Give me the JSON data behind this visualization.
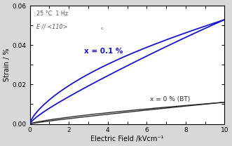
{
  "xlabel": "Electric Field /kVcm⁻¹",
  "ylabel": "Strain / %",
  "annotation_line1": "25 °C  1 Hz",
  "annotation_line2": "E // <110>",
  "annotation_sub": "c",
  "label_blue": "x = 0.1 %",
  "label_black": "x = 0 % (BT)",
  "xlim": [
    0,
    10
  ],
  "ylim": [
    0,
    0.06
  ],
  "xticks": [
    0,
    2,
    4,
    6,
    8,
    10
  ],
  "yticks": [
    0.0,
    0.02,
    0.04,
    0.06
  ],
  "blue_color": "#1515CC",
  "black_color": "#2a2a2a",
  "annot_color": "#555555",
  "plot_bg": "#ffffff",
  "fig_bg": "#d8d8d8",
  "blue_max": 0.053,
  "blue_exp": 0.72,
  "blue_spread": 0.006,
  "black_max": 0.011,
  "black_exp": 0.8,
  "black_spread": 0.0008,
  "blue_lw": 1.3,
  "black_lw": 1.0
}
